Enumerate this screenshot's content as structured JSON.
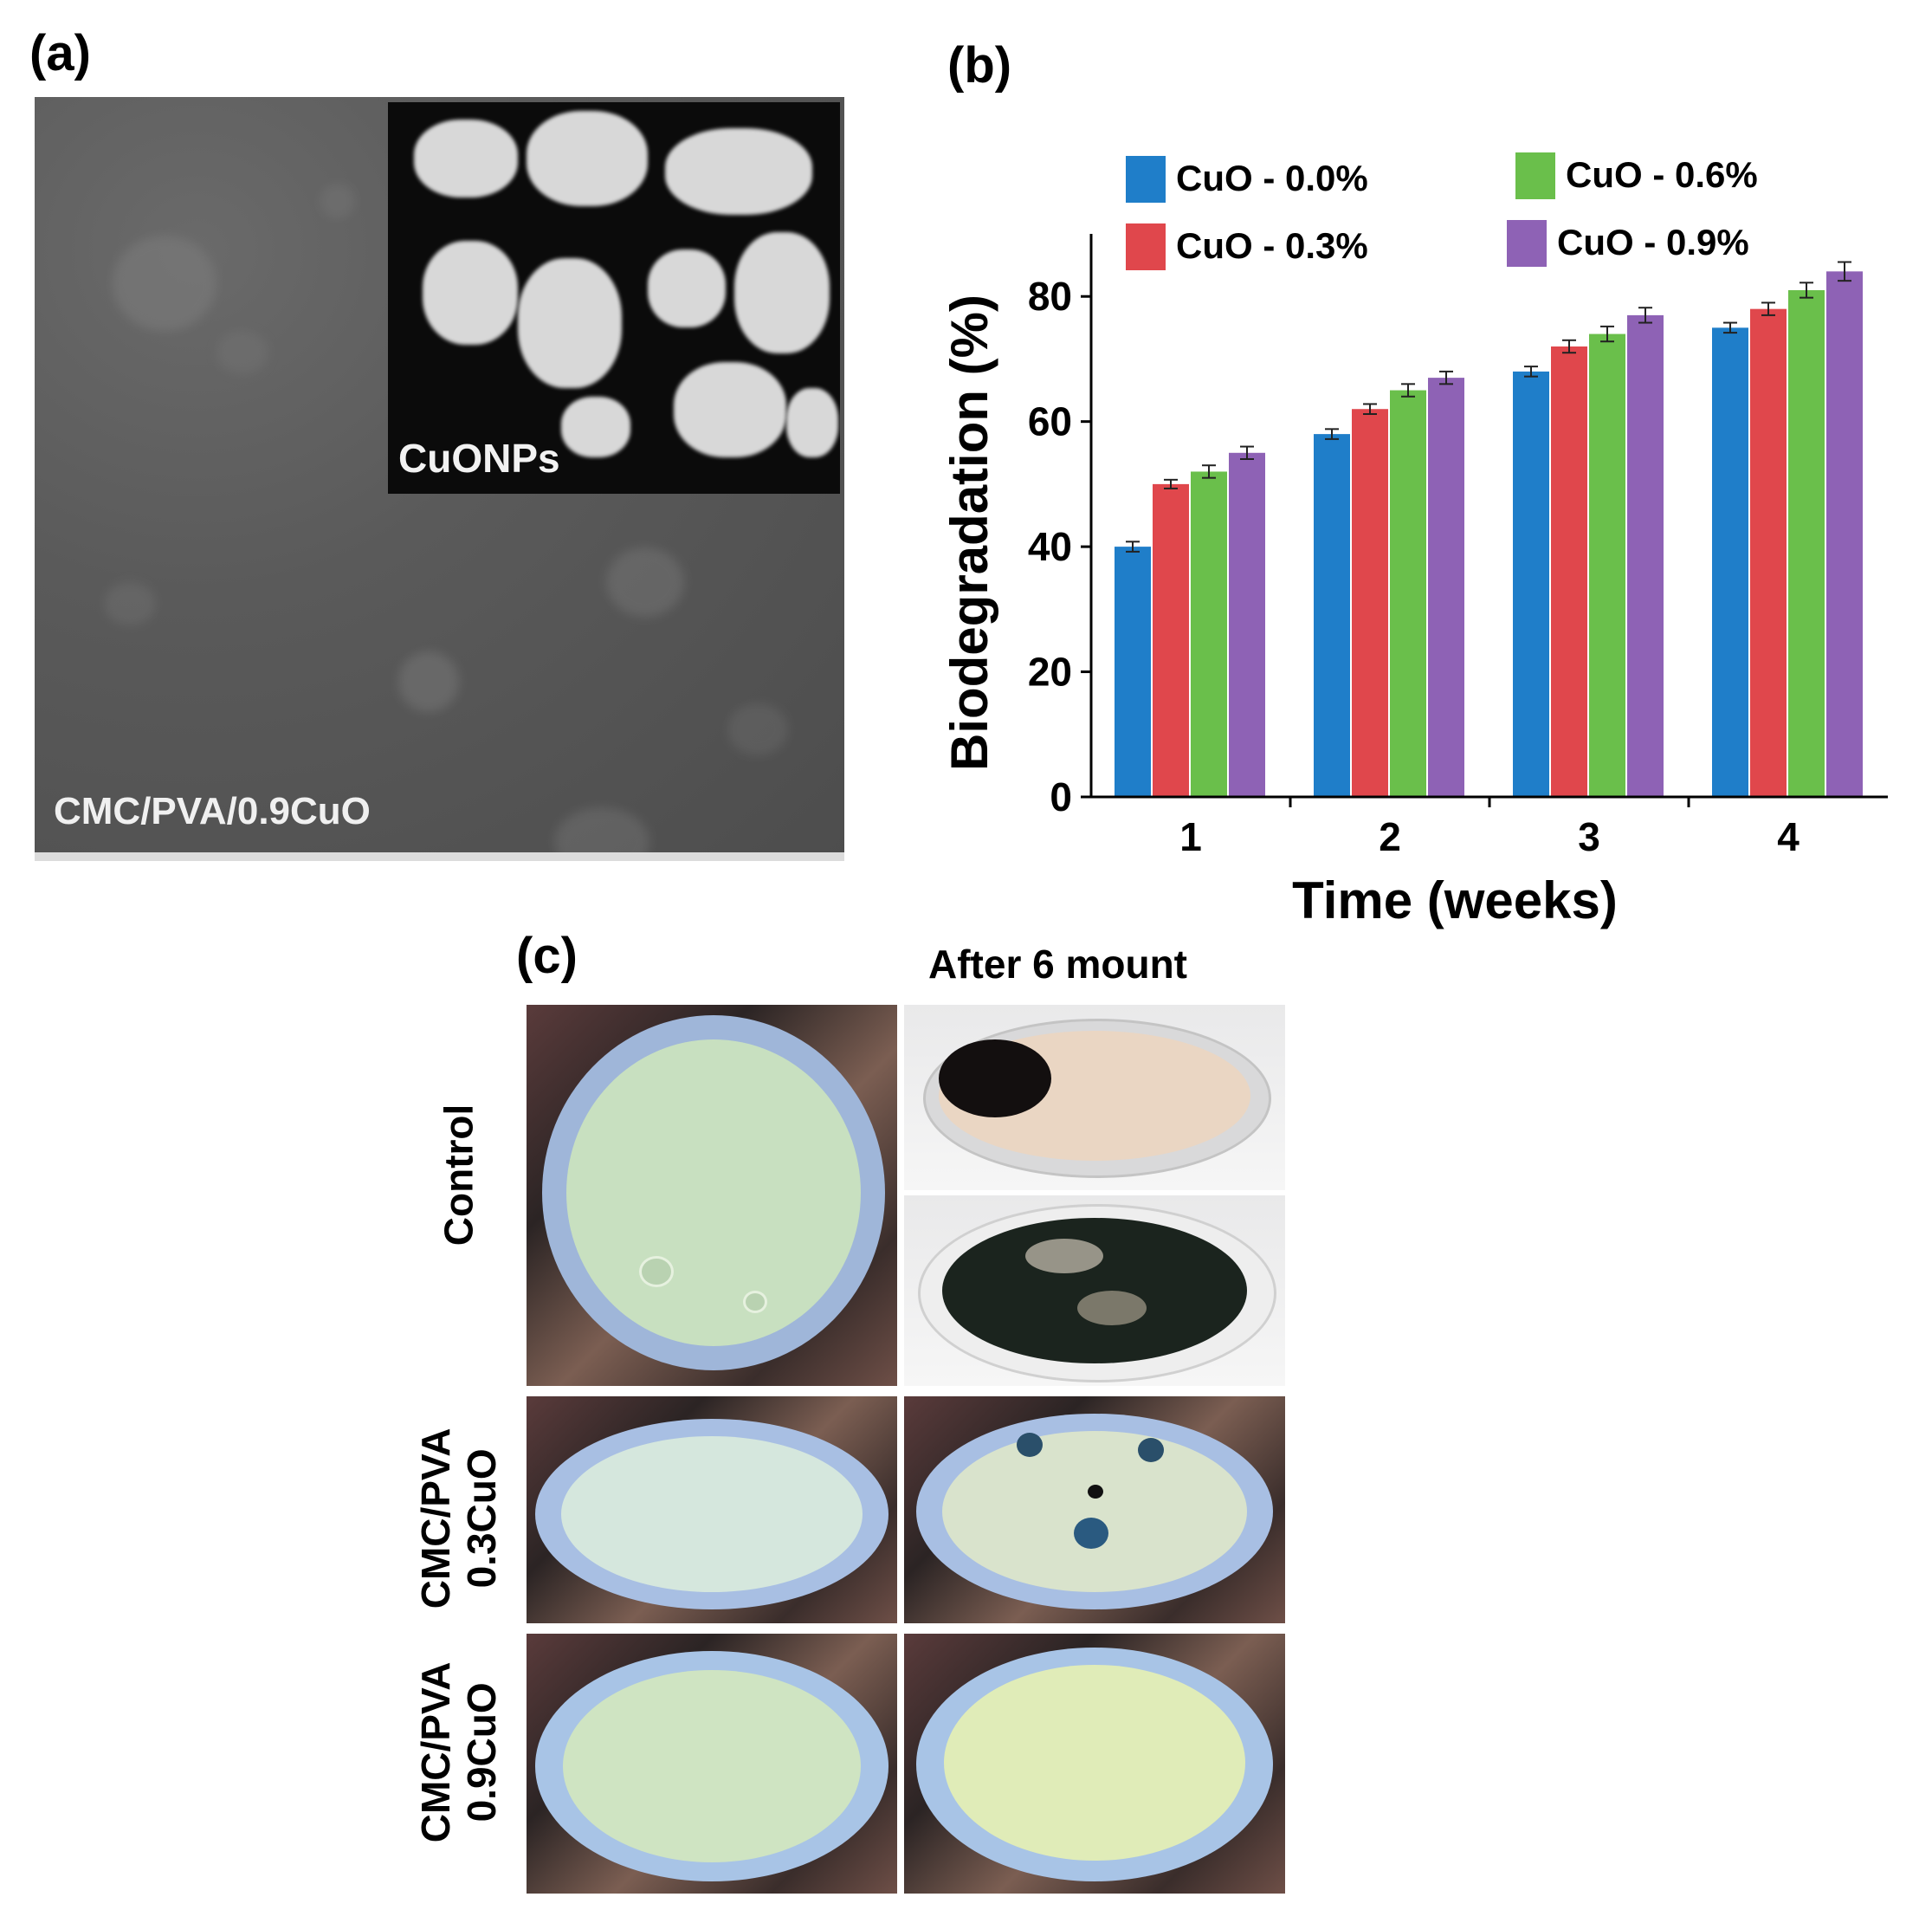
{
  "panel_a": {
    "letter": "(a)",
    "inset_label": "CuONPs",
    "image_label": "CMC/PVA/0.9CuO"
  },
  "panel_b": {
    "letter": "(b)"
  },
  "panel_c": {
    "letter": "(c)",
    "column_heading": "After 6 mount",
    "row_labels": {
      "control": "Control",
      "cuo03_line1": "CMC/PVA",
      "cuo03_line2": "0.3CuO",
      "cuo09_line1": "CMC/PVA",
      "cuo09_line2": "0.9CuO"
    }
  },
  "colors": {
    "blue": "#1f7ec9",
    "red": "#e0474c",
    "green": "#6abf4b",
    "purple": "#8e62b5"
  },
  "chart_data": {
    "type": "bar",
    "categories": [
      "1",
      "2",
      "3",
      "4"
    ],
    "xlabel": "Time (weeks)",
    "ylabel": "Biodegradation (%)",
    "ylim": [
      0,
      90
    ],
    "yticks": [
      0,
      20,
      40,
      60,
      80
    ],
    "error_bars": true,
    "legend_position": "top",
    "series": [
      {
        "name": "CuO - 0.0%",
        "color": "#1f7ec9",
        "values": [
          40,
          58,
          68,
          75
        ],
        "errors": [
          0.8,
          0.8,
          0.8,
          0.8
        ]
      },
      {
        "name": "CuO - 0.3%",
        "color": "#e0474c",
        "values": [
          50,
          62,
          72,
          78
        ],
        "errors": [
          0.7,
          0.8,
          1.0,
          1.0
        ]
      },
      {
        "name": "CuO - 0.6%",
        "color": "#6abf4b",
        "values": [
          52,
          65,
          74,
          81
        ],
        "errors": [
          1.0,
          1.0,
          1.2,
          1.2
        ]
      },
      {
        "name": "CuO - 0.9%",
        "color": "#8e62b5",
        "values": [
          55,
          67,
          77,
          84
        ],
        "errors": [
          1.0,
          1.0,
          1.2,
          1.5
        ]
      }
    ]
  }
}
